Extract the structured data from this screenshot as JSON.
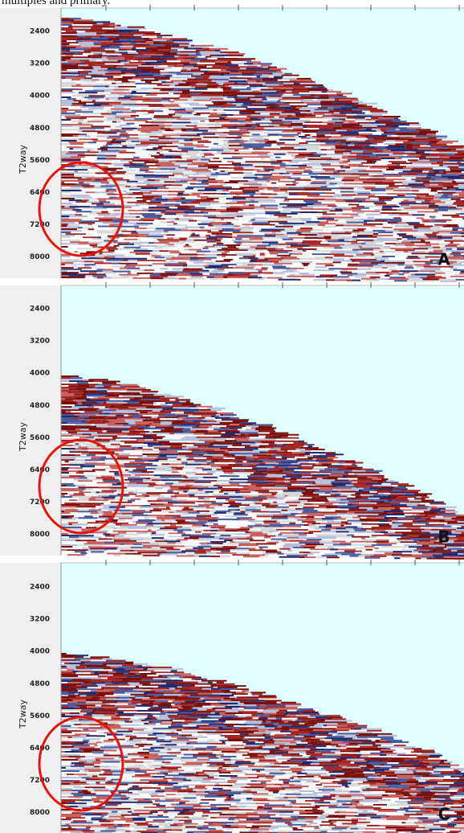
{
  "caption": "multiples and primary.",
  "panels": [
    {
      "label": "A",
      "axis_title": "T2way",
      "ticks": [
        "2400",
        "3200",
        "4000",
        "4800",
        "5600",
        "6400",
        "7200",
        "8000"
      ]
    },
    {
      "label": "B",
      "axis_title": "T2way",
      "ticks": [
        "2400",
        "3200",
        "4000",
        "4800",
        "5600",
        "6400",
        "7200",
        "8000"
      ]
    },
    {
      "label": "C",
      "axis_title": "T2way",
      "ticks": [
        "2400",
        "3200",
        "4000",
        "4800",
        "5600",
        "6400",
        "7200",
        "8000"
      ]
    }
  ]
}
